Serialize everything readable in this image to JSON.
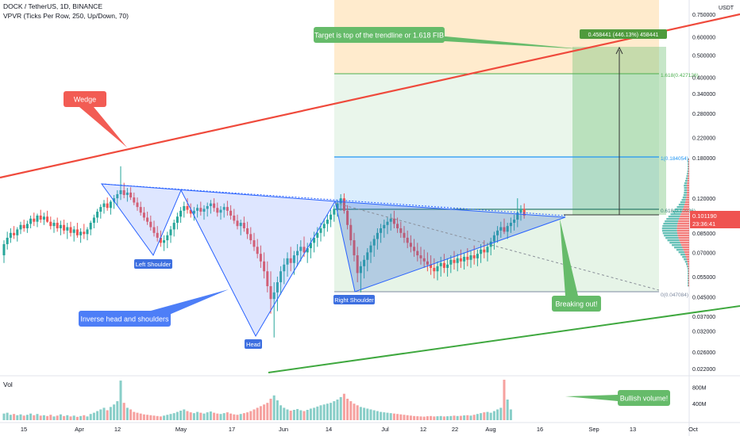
{
  "header": {
    "title": "DOCK / TetherUS, 1D, BINANCE",
    "indicator": "VPVR (Ticks Per Row, 250, Up/Down, 70)"
  },
  "volume_label": "Vol",
  "colors": {
    "up": "#26a69a",
    "down": "#ef5350",
    "trendline_red": "#ef4a3c",
    "trendline_green": "#3fa83f",
    "pattern_blue": "#2962ff",
    "fib_blue": "#2196f3",
    "fib_green": "#4caf50",
    "target_green": "#4e9a3c"
  },
  "annotations": {
    "wedge": "Wedge",
    "target": "Target is top of the trendline or 1.618 FIB",
    "inverse_hs": "Inverse head and shoulders",
    "left_shoulder": "Left Shoulder",
    "head": "Head",
    "right_shoulder": "Right Shoulder",
    "breaking_out": "Breaking out!",
    "bullish_volume": "Bullish volume!",
    "measure": "0.458441 (446.13%) 458441"
  },
  "fib": {
    "f1618": "1.618(0.427126)",
    "f1": "1(0.184054)",
    "f0618": "0.618(0.10936)",
    "f0": "0(0.047084)"
  },
  "price_tag": {
    "value": "0.101190",
    "countdown": "23:36:41"
  },
  "chart_data": {
    "type": "candlestick",
    "title": "DOCK / TetherUS, 1D, BINANCE",
    "y_unit": "USDT",
    "y_scale": "log",
    "ylim": [
      0.021,
      0.9
    ],
    "y_ticks": [
      {
        "v": 0.75,
        "label": "0.750000"
      },
      {
        "v": 0.6,
        "label": "0.600000"
      },
      {
        "v": 0.5,
        "label": "0.500000"
      },
      {
        "v": 0.4,
        "label": "0.400000"
      },
      {
        "v": 0.34,
        "label": "0.340000"
      },
      {
        "v": 0.28,
        "label": "0.280000"
      },
      {
        "v": 0.22,
        "label": "0.220000"
      },
      {
        "v": 0.18,
        "label": "0.180000"
      },
      {
        "v": 0.12,
        "label": "0.120000"
      },
      {
        "v": 0.085,
        "label": "0.085000"
      },
      {
        "v": 0.07,
        "label": "0.070000"
      },
      {
        "v": 0.055,
        "label": "0.055000"
      },
      {
        "v": 0.045,
        "label": "0.045000"
      },
      {
        "v": 0.037,
        "label": "0.037000"
      },
      {
        "v": 0.032,
        "label": "0.032000"
      },
      {
        "v": 0.026,
        "label": "0.026000"
      },
      {
        "v": 0.022,
        "label": "0.022000"
      }
    ],
    "vol_ticks": [
      {
        "v": 800,
        "label": "800M"
      },
      {
        "v": 400,
        "label": "400M"
      }
    ],
    "x_ticks": [
      "15",
      "Apr",
      "12",
      "May",
      "17",
      "Jun",
      "14",
      "Jul",
      "12",
      "22",
      "Aug",
      "16",
      "Sep",
      "13",
      "Oct"
    ],
    "ohlc": [
      [
        0.068,
        0.079,
        0.063,
        0.076
      ],
      [
        0.076,
        0.086,
        0.072,
        0.081
      ],
      [
        0.081,
        0.089,
        0.077,
        0.085
      ],
      [
        0.085,
        0.091,
        0.08,
        0.083
      ],
      [
        0.083,
        0.09,
        0.078,
        0.088
      ],
      [
        0.088,
        0.095,
        0.084,
        0.092
      ],
      [
        0.092,
        0.097,
        0.086,
        0.089
      ],
      [
        0.089,
        0.096,
        0.085,
        0.093
      ],
      [
        0.093,
        0.101,
        0.089,
        0.098
      ],
      [
        0.098,
        0.104,
        0.091,
        0.095
      ],
      [
        0.095,
        0.103,
        0.09,
        0.101
      ],
      [
        0.101,
        0.107,
        0.094,
        0.097
      ],
      [
        0.097,
        0.104,
        0.092,
        0.1
      ],
      [
        0.1,
        0.106,
        0.094,
        0.095
      ],
      [
        0.095,
        0.1,
        0.088,
        0.091
      ],
      [
        0.091,
        0.097,
        0.085,
        0.094
      ],
      [
        0.094,
        0.099,
        0.086,
        0.089
      ],
      [
        0.089,
        0.096,
        0.083,
        0.092
      ],
      [
        0.092,
        0.097,
        0.084,
        0.087
      ],
      [
        0.087,
        0.094,
        0.08,
        0.09
      ],
      [
        0.09,
        0.095,
        0.082,
        0.085
      ],
      [
        0.085,
        0.091,
        0.078,
        0.088
      ],
      [
        0.088,
        0.094,
        0.081,
        0.083
      ],
      [
        0.083,
        0.089,
        0.077,
        0.086
      ],
      [
        0.086,
        0.093,
        0.08,
        0.084
      ],
      [
        0.084,
        0.09,
        0.079,
        0.088
      ],
      [
        0.088,
        0.096,
        0.083,
        0.094
      ],
      [
        0.094,
        0.102,
        0.089,
        0.099
      ],
      [
        0.099,
        0.108,
        0.094,
        0.105
      ],
      [
        0.105,
        0.113,
        0.098,
        0.11
      ],
      [
        0.11,
        0.118,
        0.103,
        0.114
      ],
      [
        0.114,
        0.121,
        0.106,
        0.109
      ],
      [
        0.109,
        0.118,
        0.102,
        0.116
      ],
      [
        0.116,
        0.124,
        0.108,
        0.12
      ],
      [
        0.12,
        0.13,
        0.112,
        0.125
      ],
      [
        0.125,
        0.165,
        0.118,
        0.13
      ],
      [
        0.13,
        0.14,
        0.12,
        0.124
      ],
      [
        0.124,
        0.133,
        0.116,
        0.127
      ],
      [
        0.127,
        0.134,
        0.118,
        0.121
      ],
      [
        0.121,
        0.127,
        0.112,
        0.115
      ],
      [
        0.115,
        0.121,
        0.106,
        0.11
      ],
      [
        0.11,
        0.116,
        0.101,
        0.104
      ],
      [
        0.104,
        0.11,
        0.096,
        0.099
      ],
      [
        0.099,
        0.105,
        0.092,
        0.095
      ],
      [
        0.095,
        0.101,
        0.087,
        0.09
      ],
      [
        0.09,
        0.096,
        0.082,
        0.085
      ],
      [
        0.085,
        0.091,
        0.078,
        0.081
      ],
      [
        0.081,
        0.087,
        0.074,
        0.077
      ],
      [
        0.077,
        0.083,
        0.071,
        0.079
      ],
      [
        0.079,
        0.086,
        0.073,
        0.083
      ],
      [
        0.083,
        0.091,
        0.077,
        0.088
      ],
      [
        0.088,
        0.097,
        0.082,
        0.094
      ],
      [
        0.094,
        0.104,
        0.088,
        0.1
      ],
      [
        0.1,
        0.11,
        0.094,
        0.106
      ],
      [
        0.106,
        0.116,
        0.099,
        0.111
      ],
      [
        0.111,
        0.12,
        0.103,
        0.107
      ],
      [
        0.107,
        0.114,
        0.099,
        0.103
      ],
      [
        0.103,
        0.11,
        0.096,
        0.106
      ],
      [
        0.106,
        0.113,
        0.099,
        0.109
      ],
      [
        0.109,
        0.116,
        0.101,
        0.105
      ],
      [
        0.105,
        0.112,
        0.097,
        0.108
      ],
      [
        0.108,
        0.115,
        0.1,
        0.111
      ],
      [
        0.111,
        0.118,
        0.103,
        0.114
      ],
      [
        0.114,
        0.12,
        0.105,
        0.109
      ],
      [
        0.109,
        0.115,
        0.1,
        0.104
      ],
      [
        0.104,
        0.111,
        0.097,
        0.107
      ],
      [
        0.107,
        0.114,
        0.099,
        0.11
      ],
      [
        0.11,
        0.117,
        0.101,
        0.106
      ],
      [
        0.106,
        0.112,
        0.097,
        0.101
      ],
      [
        0.101,
        0.108,
        0.093,
        0.096
      ],
      [
        0.096,
        0.102,
        0.088,
        0.091
      ],
      [
        0.091,
        0.097,
        0.083,
        0.094
      ],
      [
        0.094,
        0.1,
        0.086,
        0.089
      ],
      [
        0.089,
        0.095,
        0.08,
        0.084
      ],
      [
        0.084,
        0.09,
        0.076,
        0.079
      ],
      [
        0.079,
        0.085,
        0.071,
        0.074
      ],
      [
        0.074,
        0.08,
        0.066,
        0.069
      ],
      [
        0.069,
        0.075,
        0.06,
        0.064
      ],
      [
        0.064,
        0.07,
        0.054,
        0.058
      ],
      [
        0.058,
        0.064,
        0.047,
        0.05
      ],
      [
        0.05,
        0.058,
        0.038,
        0.044
      ],
      [
        0.044,
        0.052,
        0.03,
        0.047
      ],
      [
        0.047,
        0.055,
        0.039,
        0.052
      ],
      [
        0.052,
        0.061,
        0.046,
        0.058
      ],
      [
        0.058,
        0.066,
        0.051,
        0.062
      ],
      [
        0.062,
        0.07,
        0.055,
        0.066
      ],
      [
        0.066,
        0.074,
        0.058,
        0.063
      ],
      [
        0.063,
        0.071,
        0.056,
        0.068
      ],
      [
        0.068,
        0.076,
        0.061,
        0.071
      ],
      [
        0.071,
        0.079,
        0.064,
        0.074
      ],
      [
        0.074,
        0.082,
        0.067,
        0.07
      ],
      [
        0.07,
        0.077,
        0.063,
        0.073
      ],
      [
        0.073,
        0.081,
        0.066,
        0.077
      ],
      [
        0.077,
        0.086,
        0.07,
        0.081
      ],
      [
        0.081,
        0.09,
        0.074,
        0.085
      ],
      [
        0.085,
        0.094,
        0.078,
        0.089
      ],
      [
        0.089,
        0.098,
        0.082,
        0.093
      ],
      [
        0.093,
        0.102,
        0.086,
        0.097
      ],
      [
        0.097,
        0.107,
        0.09,
        0.102
      ],
      [
        0.102,
        0.112,
        0.095,
        0.108
      ],
      [
        0.108,
        0.118,
        0.1,
        0.114
      ],
      [
        0.114,
        0.125,
        0.106,
        0.12
      ],
      [
        0.12,
        0.126,
        0.103,
        0.106
      ],
      [
        0.106,
        0.112,
        0.088,
        0.092
      ],
      [
        0.092,
        0.098,
        0.075,
        0.079
      ],
      [
        0.079,
        0.085,
        0.064,
        0.068
      ],
      [
        0.068,
        0.074,
        0.052,
        0.057
      ],
      [
        0.057,
        0.064,
        0.047,
        0.061
      ],
      [
        0.061,
        0.068,
        0.054,
        0.065
      ],
      [
        0.065,
        0.073,
        0.058,
        0.07
      ],
      [
        0.07,
        0.078,
        0.063,
        0.075
      ],
      [
        0.075,
        0.083,
        0.067,
        0.08
      ],
      [
        0.08,
        0.089,
        0.072,
        0.085
      ],
      [
        0.085,
        0.093,
        0.077,
        0.089
      ],
      [
        0.089,
        0.097,
        0.081,
        0.092
      ],
      [
        0.092,
        0.1,
        0.084,
        0.095
      ],
      [
        0.095,
        0.103,
        0.087,
        0.098
      ],
      [
        0.098,
        0.106,
        0.089,
        0.093
      ],
      [
        0.093,
        0.099,
        0.085,
        0.089
      ],
      [
        0.089,
        0.095,
        0.081,
        0.085
      ],
      [
        0.085,
        0.091,
        0.077,
        0.081
      ],
      [
        0.081,
        0.087,
        0.073,
        0.077
      ],
      [
        0.077,
        0.083,
        0.07,
        0.074
      ],
      [
        0.074,
        0.08,
        0.067,
        0.071
      ],
      [
        0.071,
        0.077,
        0.064,
        0.068
      ],
      [
        0.068,
        0.074,
        0.062,
        0.066
      ],
      [
        0.066,
        0.072,
        0.06,
        0.064
      ],
      [
        0.064,
        0.07,
        0.058,
        0.062
      ],
      [
        0.062,
        0.068,
        0.056,
        0.06
      ],
      [
        0.06,
        0.066,
        0.054,
        0.058
      ],
      [
        0.058,
        0.064,
        0.053,
        0.061
      ],
      [
        0.061,
        0.067,
        0.055,
        0.063
      ],
      [
        0.063,
        0.069,
        0.057,
        0.06
      ],
      [
        0.06,
        0.066,
        0.055,
        0.062
      ],
      [
        0.062,
        0.068,
        0.057,
        0.065
      ],
      [
        0.065,
        0.071,
        0.059,
        0.063
      ],
      [
        0.063,
        0.069,
        0.058,
        0.066
      ],
      [
        0.066,
        0.072,
        0.06,
        0.064
      ],
      [
        0.064,
        0.07,
        0.059,
        0.067
      ],
      [
        0.067,
        0.073,
        0.061,
        0.065
      ],
      [
        0.065,
        0.071,
        0.06,
        0.068
      ],
      [
        0.068,
        0.075,
        0.062,
        0.066
      ],
      [
        0.066,
        0.072,
        0.061,
        0.069
      ],
      [
        0.069,
        0.076,
        0.063,
        0.072
      ],
      [
        0.072,
        0.079,
        0.066,
        0.07
      ],
      [
        0.07,
        0.077,
        0.064,
        0.074
      ],
      [
        0.074,
        0.081,
        0.068,
        0.078
      ],
      [
        0.078,
        0.086,
        0.072,
        0.083
      ],
      [
        0.083,
        0.091,
        0.077,
        0.087
      ],
      [
        0.087,
        0.095,
        0.081,
        0.09
      ],
      [
        0.09,
        0.098,
        0.084,
        0.086
      ],
      [
        0.086,
        0.094,
        0.08,
        0.091
      ],
      [
        0.091,
        0.099,
        0.085,
        0.094
      ],
      [
        0.094,
        0.102,
        0.087,
        0.097
      ],
      [
        0.097,
        0.12,
        0.09,
        0.104
      ],
      [
        0.104,
        0.112,
        0.096,
        0.108
      ],
      [
        0.108,
        0.114,
        0.098,
        0.101
      ]
    ],
    "volume": [
      160,
      180,
      130,
      150,
      120,
      140,
      110,
      130,
      160,
      120,
      150,
      110,
      120,
      100,
      130,
      90,
      110,
      140,
      100,
      120,
      90,
      110,
      80,
      100,
      120,
      90,
      150,
      180,
      220,
      260,
      300,
      240,
      320,
      380,
      460,
      960,
      420,
      300,
      260,
      200,
      180,
      160,
      140,
      130,
      120,
      110,
      100,
      90,
      110,
      130,
      150,
      170,
      200,
      230,
      260,
      220,
      190,
      170,
      200,
      180,
      160,
      190,
      210,
      180,
      160,
      150,
      170,
      190,
      160,
      140,
      130,
      150,
      170,
      190,
      220,
      260,
      300,
      340,
      380,
      420,
      520,
      600,
      480,
      360,
      300,
      260,
      230,
      250,
      270,
      240,
      220,
      250,
      280,
      300,
      330,
      360,
      380,
      400,
      420,
      460,
      500,
      560,
      640,
      520,
      460,
      400,
      360,
      320,
      300,
      280,
      260,
      240,
      220,
      200,
      190,
      180,
      170,
      160,
      150,
      140,
      130,
      120,
      110,
      100,
      95,
      90,
      85,
      95,
      100,
      90,
      95,
      100,
      90,
      95,
      100,
      110,
      100,
      105,
      115,
      120,
      110,
      130,
      150,
      170,
      190,
      200,
      180,
      220,
      260,
      300,
      980,
      500,
      260
    ],
    "series": []
  }
}
